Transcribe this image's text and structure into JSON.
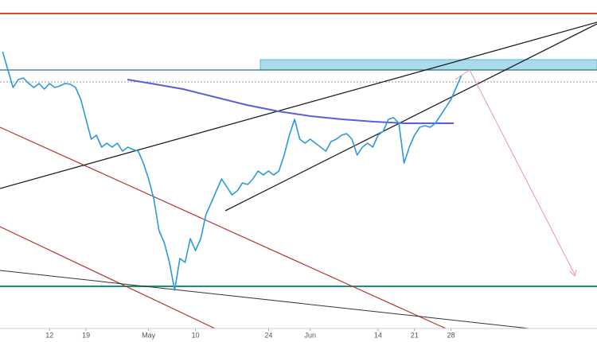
{
  "chart_data": {
    "type": "line",
    "x": [
      -2,
      0,
      1,
      2,
      3,
      4,
      5,
      6,
      7,
      8,
      9,
      10,
      11,
      12,
      13,
      14,
      15,
      16,
      17,
      18,
      19,
      20,
      21,
      22,
      23,
      24,
      25,
      26,
      27,
      28,
      29,
      30,
      31,
      32,
      33,
      34,
      35,
      36,
      37,
      38,
      39,
      40,
      41,
      42,
      43,
      44,
      45,
      46,
      47,
      48,
      49,
      50,
      51,
      52,
      53,
      54,
      55,
      56,
      57,
      58,
      59,
      60,
      61,
      62,
      63,
      64,
      65,
      66,
      67,
      68,
      69,
      70,
      71,
      72,
      73,
      74,
      75,
      76,
      77,
      78,
      79,
      80,
      81,
      82,
      83,
      84,
      85,
      86
    ],
    "series": [
      {
        "color": "#2b9ad6",
        "values": [
          345,
          300,
          310,
          312,
          305,
          300,
          305,
          298,
          305,
          300,
          302,
          305,
          304,
          300,
          285,
          260,
          235,
          240,
          225,
          230,
          225,
          230,
          220,
          225,
          222,
          220,
          205,
          185,
          160,
          120,
          105,
          80,
          45,
          85,
          80,
          110,
          95,
          110,
          140,
          155,
          170,
          185,
          175,
          165,
          170,
          180,
          178,
          185,
          195,
          190,
          195,
          190,
          195,
          215,
          240,
          260,
          235,
          230,
          235,
          230,
          225,
          220,
          232,
          235,
          240,
          242,
          235,
          215,
          225,
          230,
          225,
          240,
          245,
          260,
          262,
          255,
          205,
          225,
          240,
          250,
          252,
          250,
          255,
          265,
          275,
          285,
          300,
          315
        ]
      }
    ],
    "xlim": [
      -2.5,
      112
    ],
    "ylim": [
      0,
      410
    ],
    "xticks": [
      {
        "value": 7,
        "label": "12"
      },
      {
        "value": 14,
        "label": "19"
      },
      {
        "value": 26,
        "label": "May"
      },
      {
        "value": 35,
        "label": "10"
      },
      {
        "value": 49,
        "label": "24"
      },
      {
        "value": 57,
        "label": "Jun"
      },
      {
        "value": 70,
        "label": "14"
      },
      {
        "value": 77,
        "label": "21"
      },
      {
        "value": 84,
        "label": "28"
      }
    ]
  }
}
